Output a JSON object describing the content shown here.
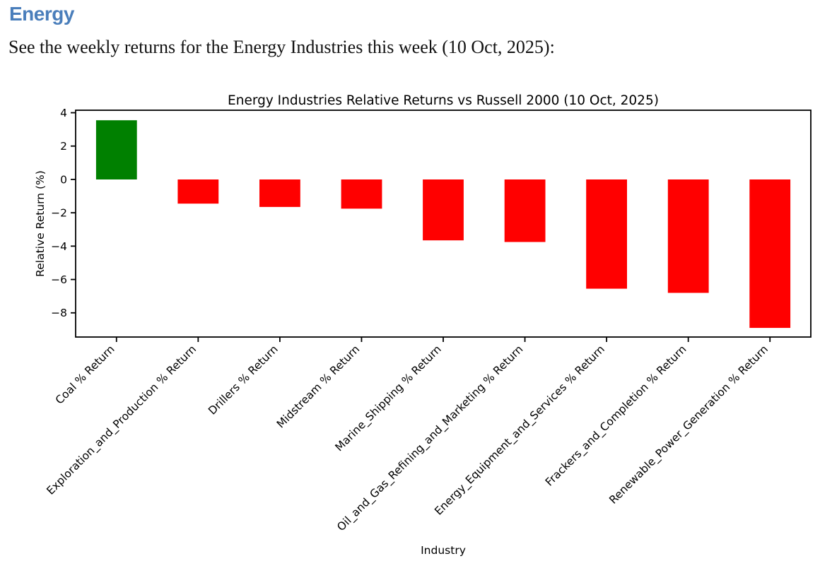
{
  "page": {
    "heading": "Energy",
    "heading_color": "#4a7ebb",
    "description": "See the weekly returns for the Energy Industries this week (10 Oct, 2025):"
  },
  "chart_data": {
    "type": "bar",
    "title": "Energy Industries Relative Returns vs Russell 2000 (10 Oct, 2025)",
    "xlabel": "Industry",
    "ylabel": "Relative Return (%)",
    "categories": [
      "Coal % Return",
      "Exploration_and_Production % Return",
      "Drillers % Return",
      "Midstream % Return",
      "Marine_Shipping % Return",
      "Oil_and_Gas_Refining_and_Marketing % Return",
      "Energy_Equipment_and_Services % Return",
      "Frackers_and_Completion % Return",
      "Renewable_Power_Generation % Return"
    ],
    "values": [
      3.55,
      -1.45,
      -1.65,
      -1.75,
      -3.65,
      -3.75,
      -6.55,
      -6.8,
      -8.9
    ],
    "positive_color": "#008000",
    "negative_color": "#ff0000",
    "axis_color": "#000000",
    "ylim": [
      -9.45,
      4.15
    ],
    "yticks": [
      4,
      2,
      0,
      -2,
      -4,
      -6,
      -8
    ],
    "grid": false,
    "legend": "none",
    "bar_width_fraction": 0.5,
    "xtick_rotation_deg": 45
  }
}
